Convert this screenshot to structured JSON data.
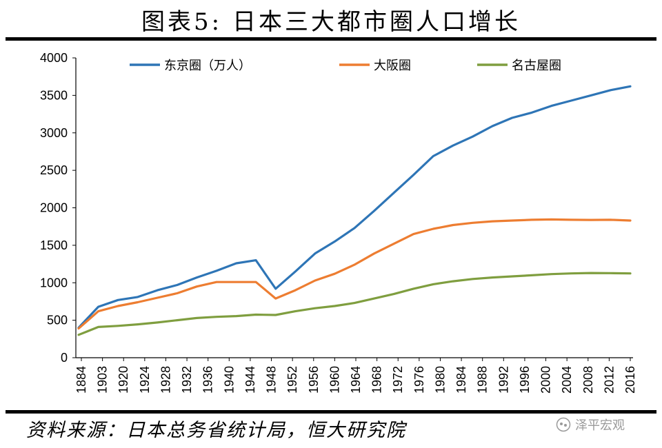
{
  "title": "图表5:  日本三大都市圈人口增长",
  "source": "资料来源：日本总务省统计局，恒大研究院",
  "watermark": "泽平宏观",
  "chart_data": {
    "type": "line",
    "title": "",
    "xlabel": "",
    "ylabel": "",
    "ylim": [
      0,
      4000
    ],
    "yticks": [
      0,
      500,
      1000,
      1500,
      2000,
      2500,
      3000,
      3500,
      4000
    ],
    "xticks": [
      "1884",
      "1903",
      "1920",
      "1924",
      "1928",
      "1932",
      "1936",
      "1940",
      "1944",
      "1948",
      "1952",
      "1956",
      "1960",
      "1964",
      "1968",
      "1972",
      "1976",
      "1980",
      "1984",
      "1988",
      "1992",
      "1996",
      "2000",
      "2004",
      "2008",
      "2012",
      "2016"
    ],
    "grid": false,
    "legend_position": "top",
    "series": [
      {
        "name": "东京圈（万人）",
        "color": "#2E75B6",
        "values": [
          400,
          680,
          770,
          810,
          900,
          970,
          1070,
          1160,
          1260,
          1300,
          920,
          1150,
          1390,
          1550,
          1730,
          1960,
          2200,
          2440,
          2690,
          2830,
          2950,
          3090,
          3200,
          3270,
          3360,
          3430,
          3500,
          3570,
          3620
        ]
      },
      {
        "name": "大阪圈",
        "color": "#ED7D31",
        "values": [
          390,
          620,
          690,
          740,
          800,
          860,
          950,
          1010,
          1010,
          1010,
          790,
          900,
          1030,
          1120,
          1240,
          1390,
          1520,
          1650,
          1720,
          1770,
          1800,
          1820,
          1830,
          1840,
          1845,
          1840,
          1838,
          1840,
          1830
        ]
      },
      {
        "name": "名古屋圈",
        "color": "#7F9E3F",
        "values": [
          305,
          410,
          425,
          445,
          470,
          500,
          530,
          545,
          555,
          575,
          570,
          620,
          660,
          690,
          730,
          790,
          850,
          920,
          980,
          1020,
          1050,
          1070,
          1085,
          1100,
          1115,
          1125,
          1130,
          1128,
          1125
        ]
      }
    ]
  }
}
